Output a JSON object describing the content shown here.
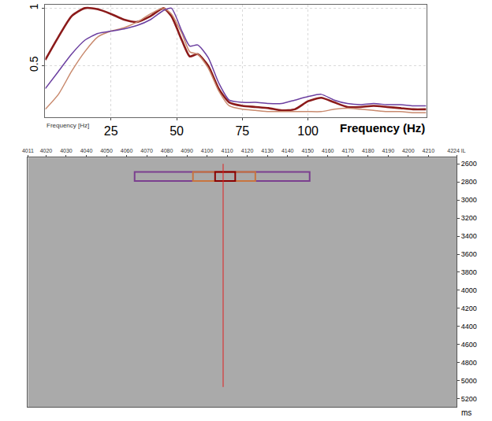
{
  "chart_data": [
    {
      "type": "line",
      "xlabel": "Frequency (Hz)",
      "annotations": [
        {
          "text": "Frequency [Hz]"
        }
      ],
      "x": [
        0,
        5,
        10,
        15,
        20,
        25,
        30,
        35,
        40,
        45,
        48,
        52,
        55,
        58,
        62,
        66,
        70,
        75,
        80,
        85,
        90,
        95,
        100,
        105,
        110,
        115,
        120,
        125,
        130,
        135,
        140,
        145
      ],
      "series": [
        {
          "color": "#8b1a1a",
          "line_style": "thick",
          "values": [
            0.55,
            0.75,
            0.93,
            1.0,
            0.99,
            0.95,
            0.9,
            0.88,
            0.93,
            1.0,
            0.93,
            0.72,
            0.58,
            0.6,
            0.5,
            0.3,
            0.18,
            0.15,
            0.14,
            0.13,
            0.11,
            0.12,
            0.19,
            0.22,
            0.18,
            0.14,
            0.14,
            0.15,
            0.14,
            0.13,
            0.12,
            0.12
          ]
        },
        {
          "color": "#c98a6e",
          "line_style": "thin",
          "values": [
            0.12,
            0.25,
            0.45,
            0.62,
            0.75,
            0.8,
            0.83,
            0.88,
            0.95,
            1.0,
            0.95,
            0.78,
            0.62,
            0.6,
            0.48,
            0.28,
            0.15,
            0.12,
            0.11,
            0.1,
            0.1,
            0.1,
            0.1,
            0.1,
            0.12,
            0.13,
            0.12,
            0.11,
            0.1,
            0.1,
            0.09,
            0.09
          ]
        },
        {
          "color": "#6b3fa0",
          "line_style": "thin",
          "values": [
            0.3,
            0.45,
            0.6,
            0.72,
            0.78,
            0.8,
            0.82,
            0.85,
            0.9,
            0.98,
            1.0,
            0.8,
            0.67,
            0.68,
            0.57,
            0.35,
            0.2,
            0.18,
            0.18,
            0.17,
            0.17,
            0.2,
            0.23,
            0.25,
            0.2,
            0.17,
            0.16,
            0.17,
            0.16,
            0.16,
            0.15,
            0.15
          ]
        }
      ],
      "xlim": [
        0,
        145
      ],
      "xticks": [
        25,
        50,
        75,
        100
      ],
      "ylim": [
        0.05,
        1.03
      ],
      "yticks": [
        0.5,
        1
      ],
      "grid": true
    },
    {
      "type": "section",
      "ylabel": "ms",
      "xlim": [
        4011,
        4224
      ],
      "xticks": [
        4011,
        4020,
        4030,
        4040,
        4050,
        4060,
        4070,
        4080,
        4090,
        4100,
        4110,
        4120,
        4130,
        4140,
        4150,
        4160,
        4170,
        4180,
        4190,
        4200,
        4210,
        {
          "value": 4224,
          "label": "4224 IL"
        }
      ],
      "ylim": [
        5290,
        2530
      ],
      "yticks": [
        2600,
        2800,
        3000,
        3200,
        3400,
        3600,
        3800,
        4000,
        4200,
        4400,
        4600,
        4800,
        5000,
        5200
      ],
      "boxes": [
        {
          "x0": 4064,
          "x1": 4151,
          "y0": 2690,
          "y1": 2790,
          "color": "#7b3f8f"
        },
        {
          "x0": 4093,
          "x1": 4124,
          "y0": 2690,
          "y1": 2790,
          "color": "#c8743f"
        },
        {
          "x0": 4104,
          "x1": 4114,
          "y0": 2690,
          "y1": 2790,
          "color": "#8b0000"
        }
      ],
      "line": {
        "x": 4108,
        "y0": 2600,
        "y1": 5070,
        "color": "#e02020"
      },
      "grid": false
    }
  ]
}
